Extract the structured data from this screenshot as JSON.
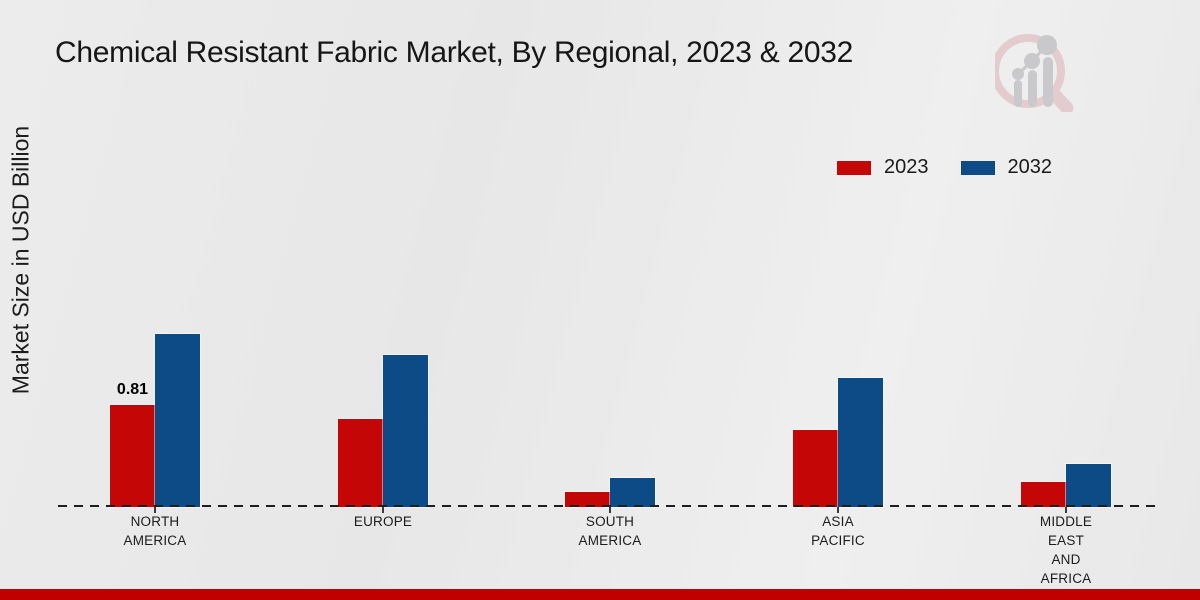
{
  "chart_data": {
    "type": "bar",
    "title": "Chemical Resistant Fabric Market, By Regional, 2023 & 2032",
    "ylabel": "Market Size in USD Billion",
    "xlabel": "",
    "categories": [
      "NORTH AMERICA",
      "EUROPE",
      "SOUTH AMERICA",
      "ASIA PACIFIC",
      "MIDDLE EAST AND AFRICA"
    ],
    "category_label_lines": [
      "NORTH\nAMERICA",
      "EUROPE",
      "SOUTH\nAMERICA",
      "ASIA\nPACIFIC",
      "MIDDLE\nEAST\nAND\nAFRICA"
    ],
    "series": [
      {
        "name": "2023",
        "color": "#c50606",
        "values": [
          0.81,
          0.7,
          0.12,
          0.61,
          0.2
        ]
      },
      {
        "name": "2032",
        "color": "#0d4b86",
        "values": [
          1.37,
          1.21,
          0.23,
          1.02,
          0.34
        ]
      }
    ],
    "data_labels": [
      {
        "series_index": 0,
        "category_index": 0,
        "text": "0.81"
      }
    ],
    "ylim": [
      0,
      1.6
    ],
    "grid": false,
    "legend_position": "top-right",
    "baseline_style": "dashed"
  },
  "legend": {
    "items": [
      {
        "label": "2023",
        "color": "#c50606"
      },
      {
        "label": "2032",
        "color": "#0d4b86"
      }
    ]
  },
  "footer": {
    "accent_color": "#c00000"
  },
  "logo": {
    "name": "magnifier-bar-chart-logo",
    "ring_color": "#e2c6c9",
    "bars_color": "#c3c3c7"
  }
}
